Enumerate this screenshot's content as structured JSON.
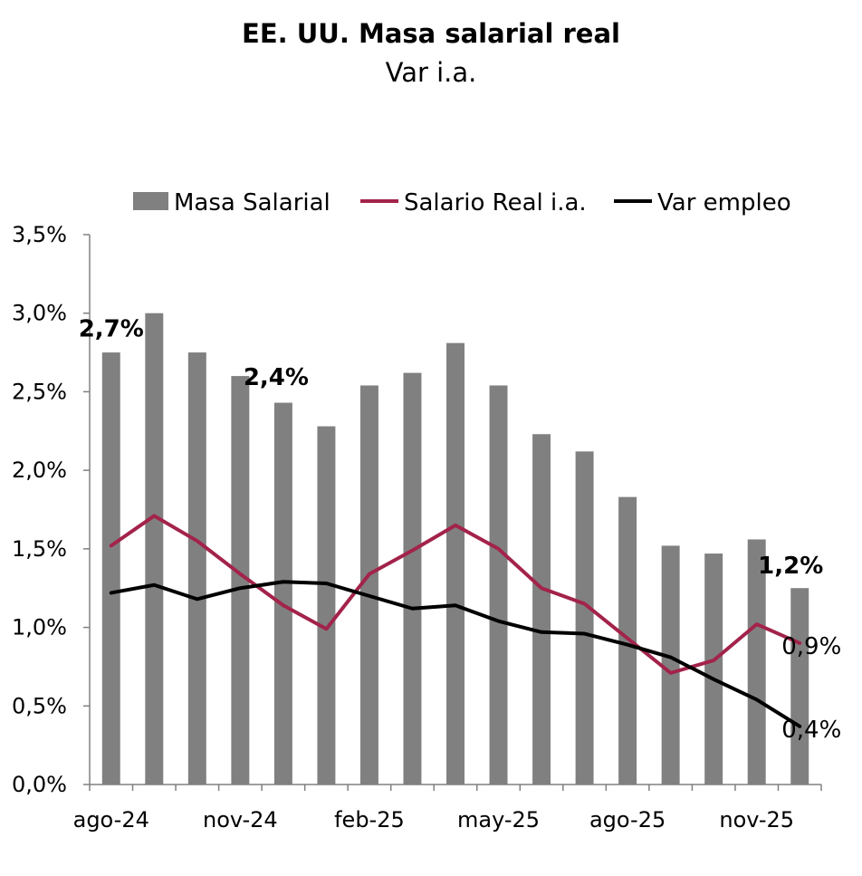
{
  "chart_data": {
    "type": "bar",
    "title": "EE. UU. Masa salarial real",
    "subtitle": "Var i.a.",
    "xlabel": "",
    "ylabel": "",
    "ylim": [
      0,
      3.5
    ],
    "y_ticks": [
      "0,0%",
      "0,5%",
      "1,0%",
      "1,5%",
      "2,0%",
      "2,5%",
      "3,0%",
      "3,5%"
    ],
    "x_tick_labels": [
      {
        "index": 0,
        "label": "ago-24"
      },
      {
        "index": 3,
        "label": "nov-24"
      },
      {
        "index": 6,
        "label": "feb-25"
      },
      {
        "index": 9,
        "label": "may-25"
      },
      {
        "index": 12,
        "label": "ago-25"
      },
      {
        "index": 15,
        "label": "nov-25"
      }
    ],
    "grid": false,
    "legend_position": "top",
    "categories": [
      "ago-24",
      "sep-24",
      "oct-24",
      "nov-24",
      "dic-24",
      "ene-25",
      "feb-25",
      "mar-25",
      "abr-25",
      "may-25",
      "jun-25",
      "jul-25",
      "ago-25",
      "sep-25",
      "oct-25",
      "nov-25",
      "dic-25"
    ],
    "series": [
      {
        "name": "Masa Salarial",
        "kind": "bar",
        "color": "#808080",
        "values": [
          2.75,
          3.0,
          2.75,
          2.6,
          2.43,
          2.28,
          2.54,
          2.62,
          2.81,
          2.54,
          2.23,
          2.12,
          1.83,
          1.52,
          1.47,
          1.56,
          1.25
        ]
      },
      {
        "name": "Salario Real i.a.",
        "kind": "line",
        "color": "#A3234A",
        "values": [
          1.52,
          1.71,
          1.55,
          1.34,
          1.14,
          0.99,
          1.34,
          1.49,
          1.65,
          1.5,
          1.25,
          1.15,
          0.93,
          0.71,
          0.79,
          1.02,
          0.9
        ]
      },
      {
        "name": "Var empleo",
        "kind": "line",
        "color": "#000000",
        "values": [
          1.22,
          1.27,
          1.18,
          1.25,
          1.29,
          1.28,
          1.2,
          1.12,
          1.14,
          1.04,
          0.97,
          0.96,
          0.89,
          0.81,
          0.67,
          0.54,
          0.37
        ]
      }
    ],
    "annotations": [
      {
        "text": "2,7%",
        "bold": true
      },
      {
        "text": "2,4%",
        "bold": true
      },
      {
        "text": "1,2%",
        "bold": true
      },
      {
        "text": "0,9%",
        "bold": false
      },
      {
        "text": "0,4%",
        "bold": false
      }
    ]
  }
}
